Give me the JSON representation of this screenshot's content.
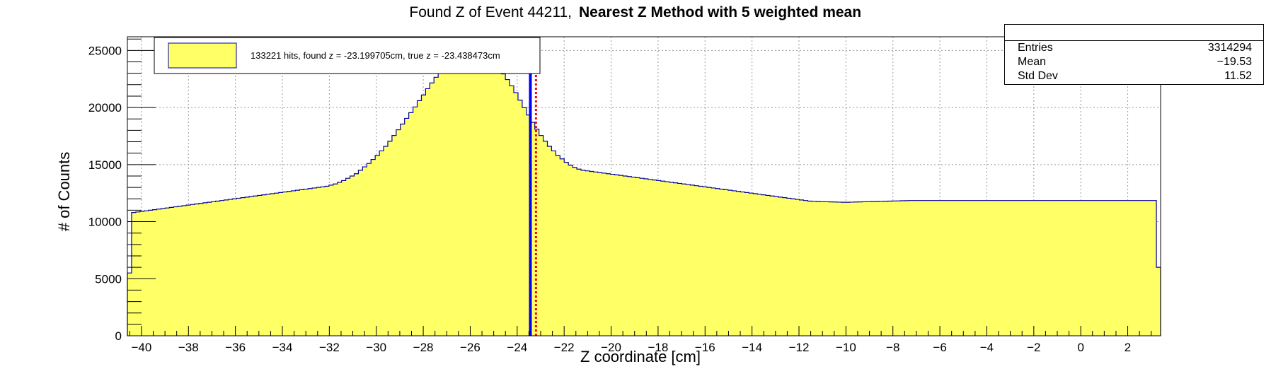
{
  "chart_data": {
    "type": "histogram",
    "title_plain": "Found Z of Event 44211,",
    "title_bold": "Nearest Z Method with 5 weighted mean",
    "xlabel": "Z coordinate [cm]",
    "ylabel": "# of Counts",
    "xlim": [
      -40.6,
      3.4
    ],
    "ylim": [
      0,
      26200
    ],
    "x_ticks": [
      -40,
      -38,
      -36,
      -34,
      -32,
      -30,
      -28,
      -26,
      -24,
      -22,
      -20,
      -18,
      -16,
      -14,
      -12,
      -10,
      -8,
      -6,
      -4,
      -2,
      0,
      2
    ],
    "y_ticks": [
      0,
      5000,
      10000,
      15000,
      20000,
      25000
    ],
    "grid": true,
    "fill_color": "#ffff66",
    "line_color": "#000099",
    "legend": {
      "position": "top-left",
      "label": "133221 hits, found z = -23.199705cm, true z = -23.438473cm"
    },
    "found_z": -23.199705,
    "true_z": -23.438473,
    "found_z_color": "#ff0000",
    "true_z_color": "#0000ff",
    "stats": {
      "entries_label": "Entries",
      "entries": "3314294",
      "mean_label": "Mean",
      "mean": "−19.53",
      "std_label": "Std Dev",
      "std": "11.52"
    },
    "bins": {
      "x_low": -40.6,
      "x_high": 3.4,
      "values": [
        5500,
        10800,
        10850,
        10900,
        10950,
        11000,
        11050,
        11100,
        11150,
        11200,
        11250,
        11300,
        11350,
        11400,
        11450,
        11500,
        11550,
        11600,
        11650,
        11700,
        11750,
        11800,
        11850,
        11900,
        11950,
        12000,
        12050,
        12100,
        12150,
        12200,
        12250,
        12300,
        12350,
        12400,
        12450,
        12500,
        12550,
        12600,
        12650,
        12700,
        12750,
        12800,
        12850,
        12900,
        12950,
        13000,
        13050,
        13100,
        13200,
        13300,
        13450,
        13600,
        13800,
        14000,
        14200,
        14500,
        14800,
        15100,
        15450,
        15800,
        16200,
        16600,
        17050,
        17550,
        18050,
        18550,
        19050,
        19550,
        20050,
        20600,
        21100,
        21650,
        22150,
        22650,
        23100,
        23500,
        23850,
        24150,
        24400,
        24600,
        24750,
        24850,
        24800,
        24700,
        24550,
        24350,
        24100,
        23800,
        23400,
        22950,
        22450,
        21900,
        21300,
        20650,
        20000,
        19350,
        18700,
        18100,
        17550,
        17050,
        16600,
        16200,
        15800,
        15500,
        15200,
        14950,
        14750,
        14600,
        14500,
        14450,
        14400,
        14350,
        14300,
        14250,
        14200,
        14150,
        14100,
        14050,
        14000,
        13950,
        13900,
        13850,
        13800,
        13750,
        13700,
        13650,
        13600,
        13550,
        13500,
        13450,
        13400,
        13350,
        13300,
        13250,
        13200,
        13150,
        13100,
        13050,
        13000,
        12950,
        12900,
        12850,
        12800,
        12750,
        12700,
        12650,
        12600,
        12550,
        12500,
        12450,
        12400,
        12350,
        12300,
        12250,
        12200,
        12150,
        12100,
        12050,
        12000,
        11950,
        11900,
        11850,
        11800,
        11780,
        11760,
        11750,
        11740,
        11730,
        11720,
        11710,
        11700,
        11700,
        11710,
        11720,
        11730,
        11740,
        11750,
        11760,
        11770,
        11780,
        11790,
        11800,
        11810,
        11820,
        11830,
        11840,
        11850,
        11850,
        11850,
        11850,
        11850,
        11850,
        11850,
        11850,
        11850,
        11850,
        11850,
        11850,
        11850,
        11850,
        11850,
        11850,
        11850,
        11850,
        11850,
        11850,
        11850,
        11850,
        11850,
        11850,
        11850,
        11850,
        11850,
        11850,
        11850,
        11850,
        11850,
        11850,
        11850,
        11850,
        11850,
        11850,
        11850,
        11850,
        11850,
        11850,
        11850,
        11850,
        11850,
        11850,
        11850,
        11850,
        11850,
        11850,
        11850,
        11850,
        11850,
        11850,
        11850,
        11850,
        11850,
        11850,
        11850,
        11850,
        11850,
        6000
      ]
    }
  }
}
